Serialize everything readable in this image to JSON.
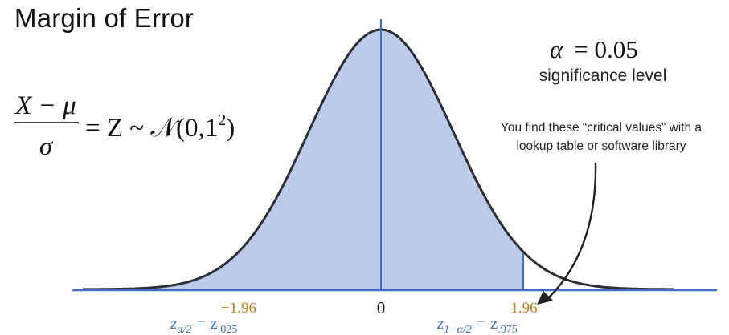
{
  "title": "Margin of Error",
  "formula": {
    "numerator": "X − μ",
    "denominator": "σ",
    "rhs": "= Z ~ 𝒩(0,1",
    "exponent": "2",
    "close": ")"
  },
  "alpha": {
    "symbol": "α",
    "equals": "= 0.05",
    "caption": "significance level"
  },
  "annotation": {
    "line1": "You find these “critical values” with a",
    "line2": "lookup table or software library"
  },
  "axis": {
    "center_label": "0",
    "left_value": "−1.96",
    "right_value": "1.96",
    "left_z": {
      "base": "z",
      "sub": "α/2",
      "eq": "= z",
      "sub2": ".025"
    },
    "right_z": {
      "base": "z",
      "sub": "1−α/2",
      "eq": "= z",
      "sub2": ".975"
    }
  },
  "colors": {
    "fill": "#bccbea",
    "curve": "#2b2f36",
    "axis": "#3f6fc9",
    "orange": "#c27a1b",
    "blue_text": "#3f6fc9"
  }
}
